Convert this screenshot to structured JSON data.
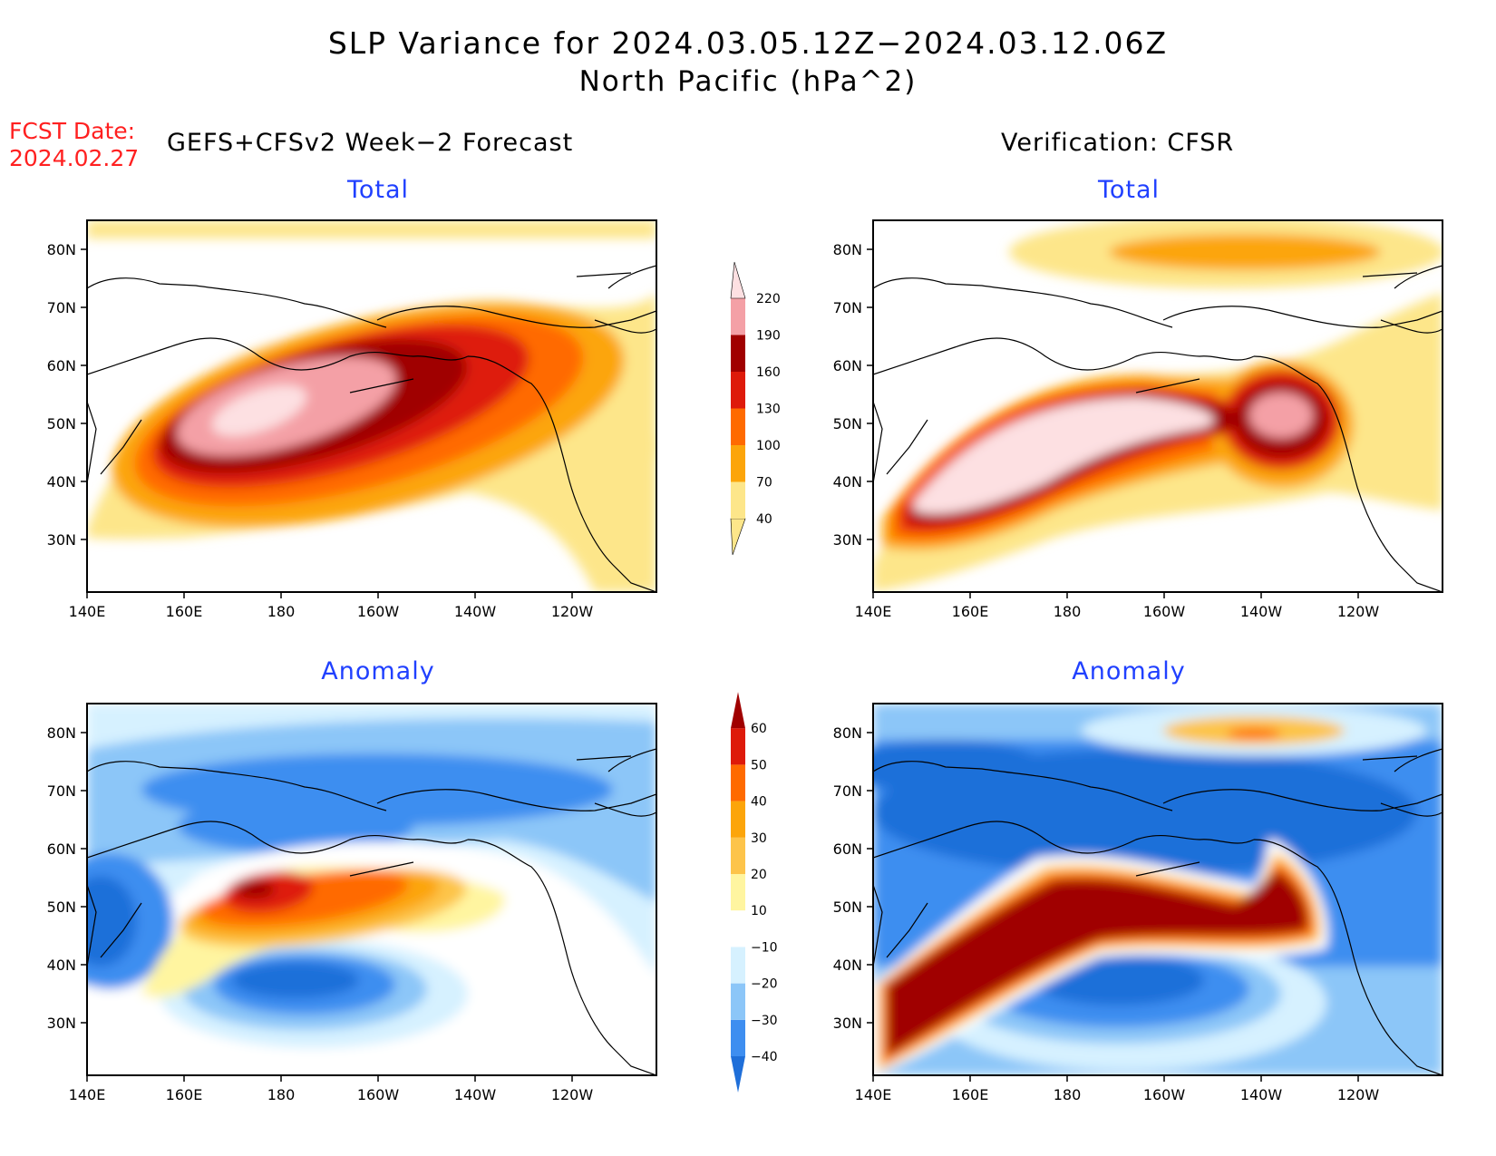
{
  "title": {
    "line1": "SLP Variance for 2024.03.05.12Z−2024.03.12.06Z",
    "line2": "North Pacific (hPa^2)"
  },
  "forecast_date": {
    "label": "FCST Date:",
    "value": "2024.02.27"
  },
  "columns": {
    "left": "GEFS+CFSv2 Week−2 Forecast",
    "right": "Verification: CFSR"
  },
  "panels": [
    {
      "id": "forecast-total",
      "title": "Total"
    },
    {
      "id": "verification-total",
      "title": "Total"
    },
    {
      "id": "forecast-anomaly",
      "title": "Anomaly"
    },
    {
      "id": "verification-anomaly",
      "title": "Anomaly"
    }
  ],
  "axes": {
    "lon_ticks": [
      "140E",
      "160E",
      "180",
      "160W",
      "140W",
      "120W"
    ],
    "lat_ticks": [
      "30N",
      "40N",
      "50N",
      "60N",
      "70N",
      "80N"
    ]
  },
  "total_colorbar": {
    "levels": [
      "40",
      "70",
      "100",
      "130",
      "160",
      "190",
      "220"
    ],
    "colors": [
      "#fde68a",
      "#fca50a",
      "#ff6a00",
      "#de1a0a",
      "#a00000",
      "#f4a0a6",
      "#fde0e2"
    ]
  },
  "anomaly_colorbar": {
    "levels": [
      "−40",
      "−30",
      "−20",
      "−10",
      "10",
      "20",
      "30",
      "40",
      "50",
      "60"
    ],
    "colors": [
      "#1f6fd9",
      "#3e8ef0",
      "#8cc6f8",
      "#d6f1ff",
      "#ffffff",
      "#fff5a0",
      "#fdc44a",
      "#fca50a",
      "#ff6a00",
      "#de1a0a",
      "#a00000"
    ]
  },
  "colors": {
    "title_text": "#000000",
    "forecast_date": "#ff2020",
    "panel_title": "#2040ff"
  }
}
